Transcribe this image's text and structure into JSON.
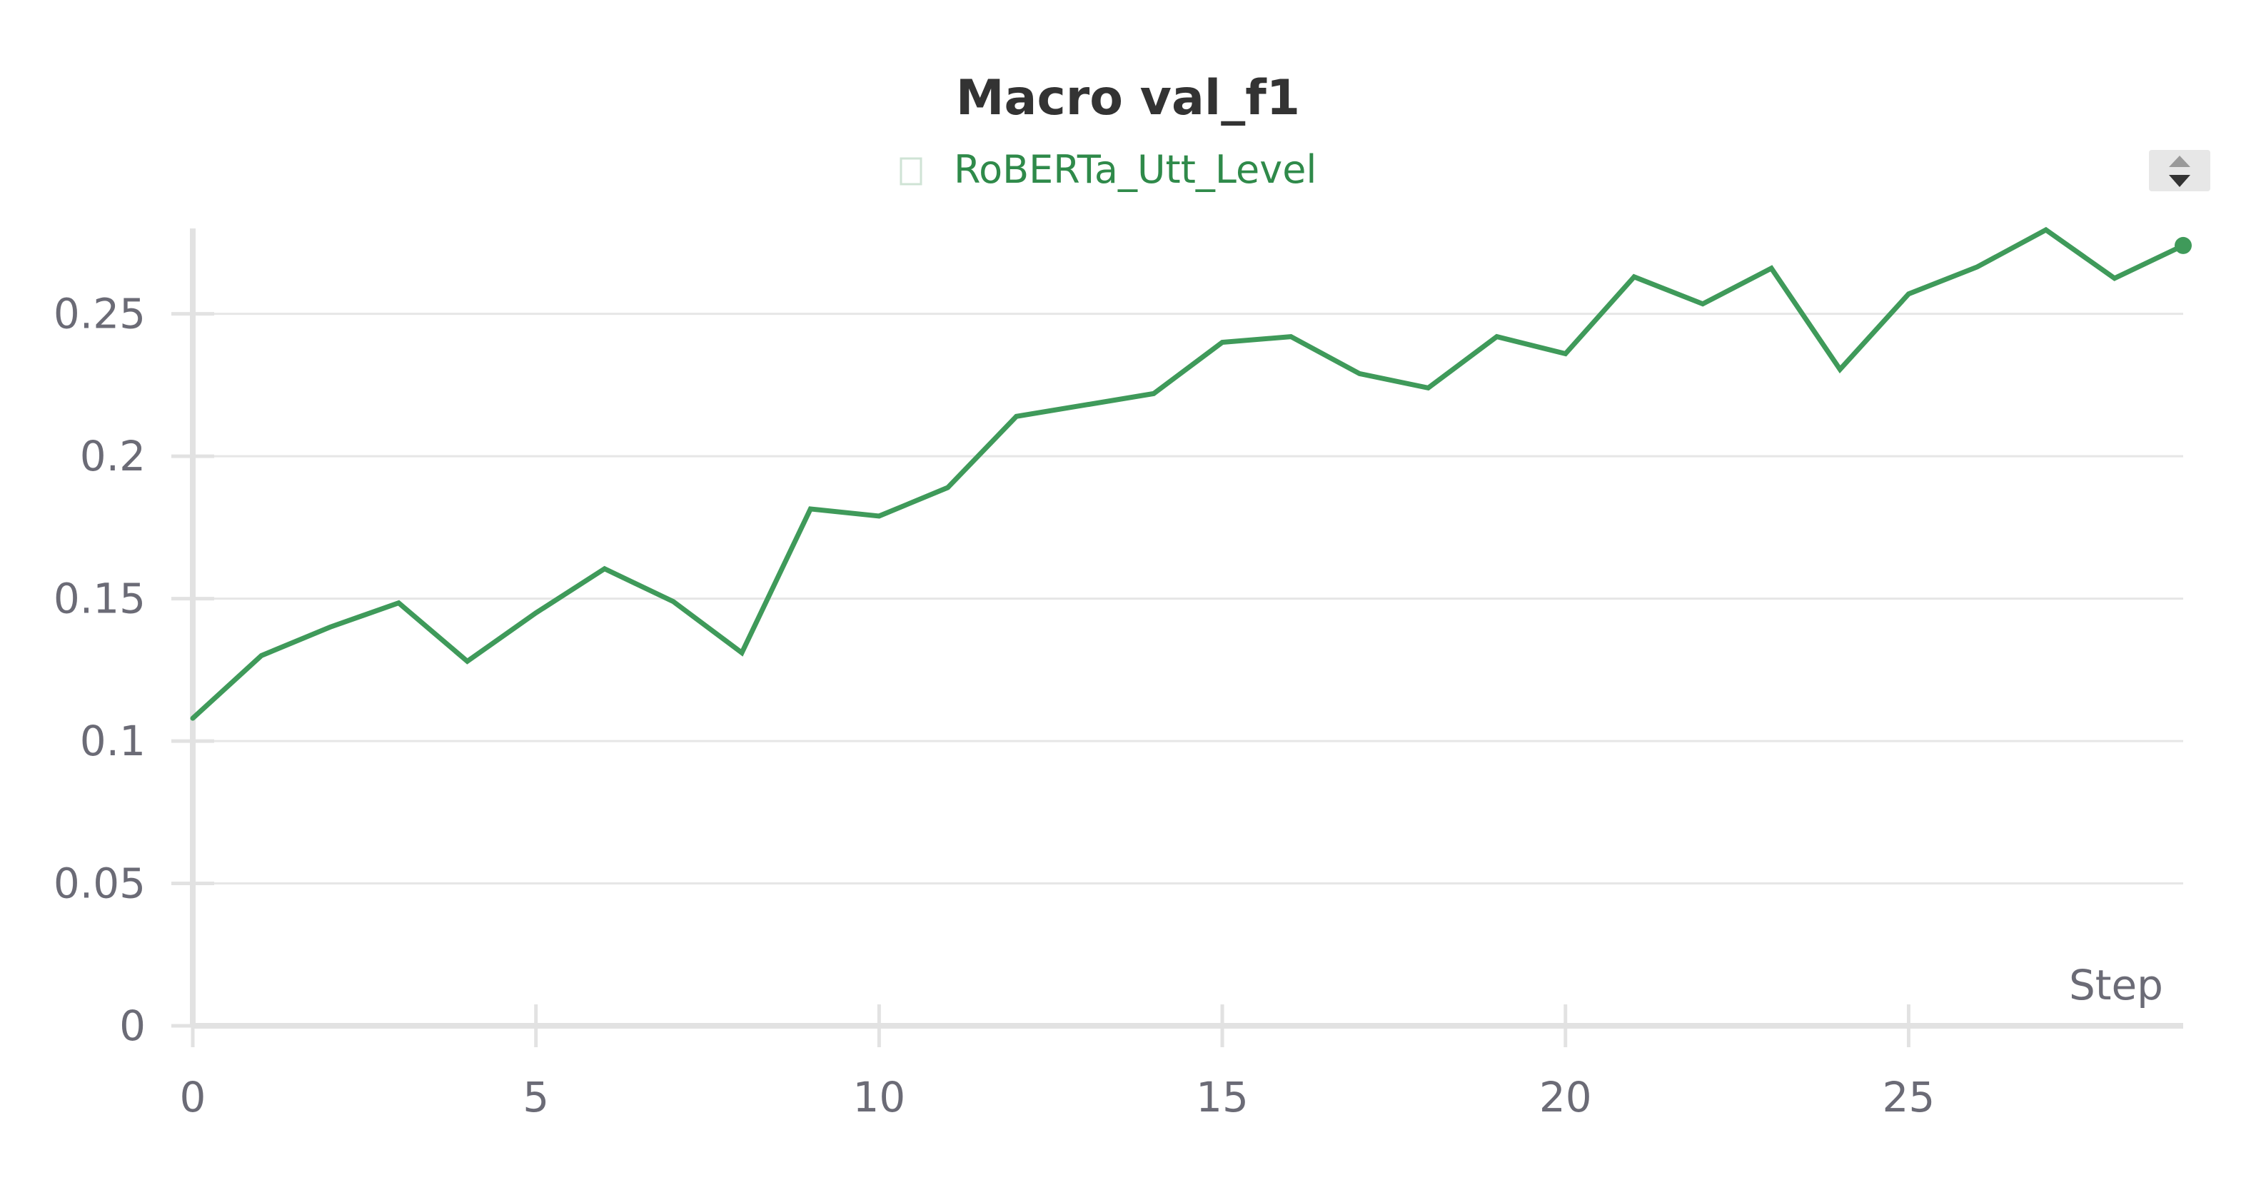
{
  "colors": {
    "series": "#3f9a5a",
    "legend_text": "#2f8a4a"
  },
  "chart_data": {
    "type": "line",
    "title": "Macro val_f1",
    "xlabel": "Step",
    "ylabel": "",
    "xlim": [
      0,
      29
    ],
    "ylim": [
      0,
      0.28
    ],
    "x_ticks": [
      0,
      5,
      10,
      15,
      20,
      25
    ],
    "y_ticks": [
      0,
      0.05,
      0.1,
      0.15,
      0.2,
      0.25
    ],
    "x_tick_labels": [
      "0",
      "5",
      "10",
      "15",
      "20",
      "25"
    ],
    "y_tick_labels": [
      "0",
      "0.05",
      "0.1",
      "0.15",
      "0.2",
      "0.25"
    ],
    "grid": true,
    "legend_position": "top-center",
    "series": [
      {
        "name": "RoBERTa_Utt_Level",
        "color": "#3f9a5a",
        "x": [
          0,
          1,
          2,
          3,
          4,
          5,
          6,
          7,
          8,
          9,
          10,
          11,
          12,
          13,
          14,
          15,
          16,
          17,
          18,
          19,
          20,
          21,
          22,
          23,
          24,
          25,
          26,
          27,
          28,
          29
        ],
        "values": [
          0.108,
          0.13,
          0.14,
          0.1485,
          0.128,
          0.145,
          0.1605,
          0.149,
          0.131,
          0.1815,
          0.179,
          0.189,
          0.214,
          0.218,
          0.222,
          0.24,
          0.242,
          0.229,
          0.224,
          0.242,
          0.236,
          0.263,
          0.2535,
          0.266,
          0.2305,
          0.257,
          0.2665,
          0.2795,
          0.2625,
          0.274
        ]
      }
    ]
  }
}
